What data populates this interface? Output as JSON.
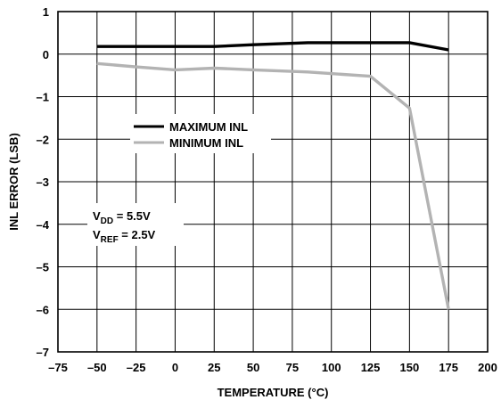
{
  "chart_data": {
    "type": "line",
    "title": "",
    "xlabel": "TEMPERATURE (°C)",
    "ylabel": "INL ERROR (LSB)",
    "xlim": [
      -75,
      200
    ],
    "ylim": [
      -7,
      1
    ],
    "x_ticks": [
      "–75",
      "–50",
      "–25",
      "0",
      "25",
      "50",
      "75",
      "100",
      "125",
      "150",
      "175",
      "200"
    ],
    "y_ticks": [
      "1",
      "0",
      "–1",
      "–2",
      "–3",
      "–4",
      "–5",
      "–6",
      "–7"
    ],
    "x_tick_values": [
      -75,
      -50,
      -25,
      0,
      25,
      50,
      75,
      100,
      125,
      150,
      175,
      200
    ],
    "y_tick_values": [
      1,
      0,
      -1,
      -2,
      -3,
      -4,
      -5,
      -6,
      -7
    ],
    "grid": true,
    "legend_position": "left",
    "series": [
      {
        "name": "MAXIMUM INL",
        "color": "#000000",
        "x": [
          -50,
          -25,
          0,
          25,
          50,
          85,
          125,
          150,
          175
        ],
        "y": [
          0.18,
          0.18,
          0.18,
          0.18,
          0.22,
          0.27,
          0.27,
          0.27,
          0.1
        ]
      },
      {
        "name": "MINIMUM INL",
        "color": "#b3b3b3",
        "x": [
          -50,
          -25,
          0,
          25,
          50,
          85,
          125,
          150,
          175
        ],
        "y": [
          -0.22,
          -0.3,
          -0.37,
          -0.33,
          -0.37,
          -0.42,
          -0.52,
          -1.27,
          -6.0
        ]
      }
    ],
    "annotation": {
      "line1_main": "V",
      "line1_sub": "DD",
      "line1_value": " = 5.5V",
      "line2_main": "V",
      "line2_sub": "REF",
      "line2_value": " = 2.5V"
    }
  }
}
